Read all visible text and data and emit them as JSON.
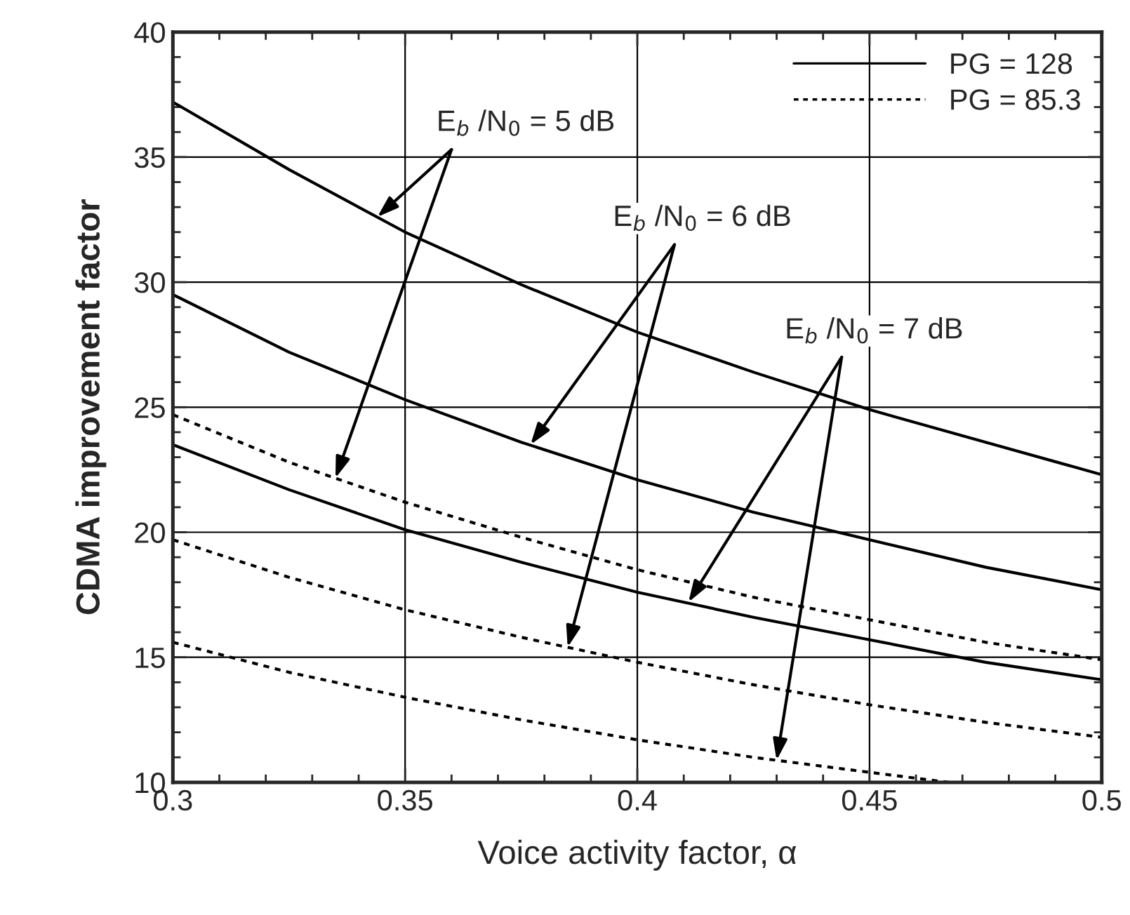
{
  "chart_data": {
    "type": "line",
    "xlabel": "Voice activity factor, α",
    "ylabel": "CDMA improvement factor",
    "x": [
      0.3,
      0.325,
      0.35,
      0.375,
      0.4,
      0.425,
      0.45,
      0.475,
      0.5
    ],
    "xlim": [
      0.3,
      0.5
    ],
    "xticks": [
      0.3,
      0.35,
      0.4,
      0.45,
      0.5
    ],
    "ylim": [
      10,
      40
    ],
    "yticks": [
      10,
      15,
      20,
      25,
      30,
      35,
      40
    ],
    "grid": true,
    "legend": "top right",
    "marker": "none",
    "series": [
      {
        "name": "PG = 128",
        "color": "#000000",
        "line_style": "solid",
        "values": [
          37.2,
          34.5,
          32.0,
          29.9,
          28.0,
          26.4,
          24.9,
          23.6,
          22.3
        ]
      },
      {
        "color": "#000000",
        "line_style": "solid",
        "values": [
          29.5,
          27.2,
          25.3,
          23.6,
          22.1,
          20.8,
          19.7,
          18.6,
          17.7
        ]
      },
      {
        "color": "#000000",
        "line_style": "solid",
        "values": [
          23.5,
          21.7,
          20.1,
          18.8,
          17.6,
          16.6,
          15.7,
          14.8,
          14.1
        ]
      },
      {
        "name": "PG = 85.3",
        "color": "#000000",
        "line_style": "dotted",
        "values": [
          24.7,
          22.8,
          21.2,
          19.8,
          18.5,
          17.4,
          16.5,
          15.6,
          14.9
        ]
      },
      {
        "color": "#000000",
        "line_style": "dotted",
        "values": [
          19.7,
          18.2,
          16.9,
          15.8,
          14.8,
          13.9,
          13.1,
          12.4,
          11.8
        ]
      },
      {
        "color": "#000000",
        "line_style": "dotted",
        "x": [
          0.3,
          0.325,
          0.35,
          0.375,
          0.4,
          0.425,
          0.45,
          0.467
        ],
        "values": [
          15.6,
          14.4,
          13.4,
          12.5,
          11.7,
          11.0,
          10.4,
          10.0
        ]
      }
    ],
    "annotations": [
      {
        "text": "E$_{b}$ /N$_{0}$ = 5 dB",
        "x": 0.344,
        "y": 32.6
      },
      {
        "text": "E$_{b}$ /N$_{0}$ = 6 dB",
        "x": 0.377,
        "y": 23.5
      },
      {
        "text": "E$_{b}$ /N$_{0}$ = 7 dB",
        "x": 0.411,
        "y": 17.2
      }
    ]
  }
}
